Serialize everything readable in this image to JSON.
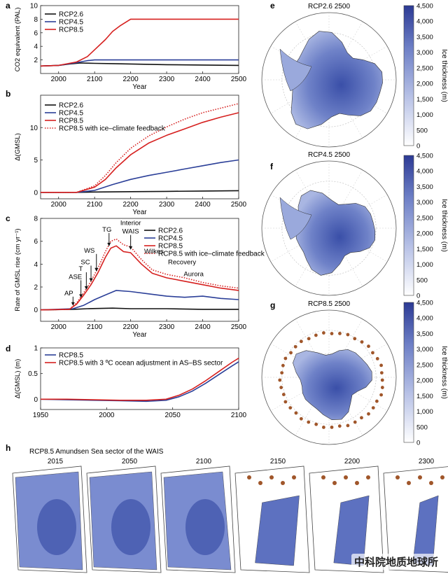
{
  "watermark": "中科院地质地球所",
  "colors": {
    "rcp26": "#111111",
    "rcp45": "#2b3f98",
    "rcp85": "#d6201f",
    "ice_light": "#ccd3ec",
    "ice_dark": "#3a4fa8",
    "retreat": "#a0562a"
  },
  "chart_data": [
    {
      "id": "a",
      "type": "line",
      "xlabel": "Year",
      "ylabel": "CO2 equivalent (PAL)",
      "xlim": [
        1950,
        2500
      ],
      "ylim": [
        0,
        10
      ],
      "xticks": [
        2000,
        2100,
        2200,
        2300,
        2400,
        2500
      ],
      "yticks": [
        2,
        4,
        6,
        8,
        10
      ],
      "legend_position": "top-left",
      "series": [
        {
          "name": "RCP2.6",
          "color": "#111111",
          "style": "solid",
          "x": [
            1950,
            2000,
            2030,
            2060,
            2100,
            2150,
            2200,
            2300,
            2400,
            2500
          ],
          "y": [
            1.1,
            1.2,
            1.4,
            1.55,
            1.5,
            1.45,
            1.4,
            1.3,
            1.25,
            1.2
          ]
        },
        {
          "name": "RCP4.5",
          "color": "#2b3f98",
          "style": "solid",
          "x": [
            1950,
            2000,
            2050,
            2080,
            2100,
            2150,
            2200,
            2500
          ],
          "y": [
            1.1,
            1.2,
            1.6,
            1.9,
            2.0,
            2.0,
            2.0,
            2.0
          ]
        },
        {
          "name": "RCP8.5",
          "color": "#d6201f",
          "style": "solid",
          "x": [
            1950,
            2000,
            2050,
            2080,
            2100,
            2130,
            2150,
            2170,
            2200,
            2300,
            2500
          ],
          "y": [
            1.1,
            1.2,
            1.7,
            2.5,
            3.5,
            5.0,
            6.2,
            7.0,
            8.0,
            8.0,
            8.0
          ]
        }
      ]
    },
    {
      "id": "b",
      "type": "line",
      "xlabel": "Year",
      "ylabel": "Δ(GMSL)",
      "xlim": [
        1950,
        2500
      ],
      "ylim": [
        -1,
        15
      ],
      "xticks": [
        2000,
        2100,
        2200,
        2300,
        2400,
        2500
      ],
      "yticks": [
        0,
        5,
        10
      ],
      "legend_position": "top-left",
      "series": [
        {
          "name": "RCP2.6",
          "color": "#111111",
          "style": "solid",
          "x": [
            1950,
            2050,
            2100,
            2200,
            2300,
            2400,
            2500
          ],
          "y": [
            0,
            0,
            0.05,
            0.1,
            0.15,
            0.2,
            0.25
          ]
        },
        {
          "name": "RCP4.5",
          "color": "#2b3f98",
          "style": "solid",
          "x": [
            1950,
            2050,
            2100,
            2150,
            2200,
            2250,
            2300,
            2350,
            2400,
            2450,
            2500
          ],
          "y": [
            0,
            0,
            0.3,
            1.2,
            2.0,
            2.6,
            3.1,
            3.6,
            4.1,
            4.6,
            5.0
          ]
        },
        {
          "name": "RCP8.5",
          "color": "#d6201f",
          "style": "solid",
          "x": [
            1950,
            2050,
            2100,
            2130,
            2160,
            2200,
            2250,
            2300,
            2350,
            2400,
            2450,
            2500
          ],
          "y": [
            0,
            0,
            0.8,
            2.0,
            3.8,
            5.8,
            7.6,
            8.8,
            9.8,
            10.8,
            11.6,
            12.3
          ]
        },
        {
          "name": "RCP8.5 with ice–climate feedback",
          "color": "#d6201f",
          "style": "dotted",
          "x": [
            1950,
            2050,
            2100,
            2130,
            2160,
            2200,
            2250,
            2300,
            2350,
            2400,
            2450,
            2500
          ],
          "y": [
            0,
            0,
            1.0,
            2.6,
            4.6,
            6.8,
            8.7,
            10.1,
            11.3,
            12.3,
            13.0,
            13.7
          ]
        }
      ]
    },
    {
      "id": "c",
      "type": "line",
      "xlabel": "Year",
      "ylabel": "Rate of GMSL rise (cm yr⁻¹)",
      "xlim": [
        1950,
        2500
      ],
      "ylim": [
        -1,
        8
      ],
      "xticks": [
        2000,
        2100,
        2200,
        2300,
        2400,
        2500
      ],
      "yticks": [
        0,
        2,
        4,
        6,
        8
      ],
      "legend_position": "top-right",
      "series": [
        {
          "name": "RCP2.6",
          "color": "#111111",
          "style": "solid",
          "x": [
            1950,
            2040,
            2080,
            2150,
            2200,
            2300,
            2400,
            2500
          ],
          "y": [
            0,
            0.05,
            0.1,
            0.15,
            0.1,
            0.1,
            0.05,
            0.05
          ]
        },
        {
          "name": "RCP4.5",
          "color": "#2b3f98",
          "style": "solid",
          "x": [
            1950,
            2040,
            2070,
            2100,
            2130,
            2160,
            2200,
            2250,
            2300,
            2350,
            2400,
            2450,
            2500
          ],
          "y": [
            0,
            0.1,
            0.4,
            0.9,
            1.3,
            1.7,
            1.6,
            1.4,
            1.2,
            1.1,
            1.2,
            1.0,
            0.9
          ]
        },
        {
          "name": "RCP8.5",
          "color": "#d6201f",
          "style": "solid",
          "x": [
            1950,
            2030,
            2050,
            2070,
            2090,
            2110,
            2130,
            2145,
            2160,
            2180,
            2200,
            2230,
            2260,
            2300,
            2350,
            2400,
            2450,
            2500
          ],
          "y": [
            0,
            0.05,
            0.5,
            1.3,
            2.2,
            3.3,
            4.6,
            5.4,
            5.6,
            5.1,
            5.0,
            4.0,
            3.2,
            2.8,
            2.5,
            2.2,
            1.9,
            1.7
          ]
        },
        {
          "name": "RCP8.5 with ice–climate feedback",
          "color": "#d6201f",
          "style": "dotted",
          "x": [
            1950,
            2030,
            2050,
            2070,
            2090,
            2110,
            2130,
            2145,
            2160,
            2180,
            2200,
            2230,
            2260,
            2300,
            2350,
            2400,
            2450,
            2500
          ],
          "y": [
            0,
            0.05,
            0.6,
            1.5,
            2.5,
            3.7,
            5.1,
            6.0,
            6.2,
            5.7,
            5.5,
            4.4,
            3.5,
            3.1,
            2.8,
            2.4,
            2.1,
            1.9
          ]
        }
      ],
      "annotations": [
        {
          "text": "AP",
          "x": 2040,
          "y": 0.3
        },
        {
          "text": "ASE",
          "x": 2062,
          "y": 1.0
        },
        {
          "text": "T",
          "x": 2077,
          "y": 1.7
        },
        {
          "text": "SC",
          "x": 2090,
          "y": 2.4
        },
        {
          "text": "WS",
          "x": 2105,
          "y": 3.3
        },
        {
          "text": "TG",
          "x": 2140,
          "y": 5.5
        },
        {
          "text": "Interior",
          "x": 2200,
          "y": 5.2
        },
        {
          "text": "WAIS",
          "x": 2200,
          "y": 5.2
        },
        {
          "text": "Wilkes",
          "x": 2222,
          "y": 4.2
        },
        {
          "text": "Recovery",
          "x": 2265,
          "y": 2.9
        },
        {
          "text": "Aurora",
          "x": 2375,
          "y": 2.1
        }
      ]
    },
    {
      "id": "d",
      "type": "line",
      "xlabel": "",
      "ylabel": "Δ(GMSL) (m)",
      "xlim": [
        1950,
        2100
      ],
      "ylim": [
        -0.2,
        1.0
      ],
      "xticks": [
        1950,
        2000,
        2050,
        2100
      ],
      "yticks": [
        0,
        0.5,
        1.0
      ],
      "legend_position": "top-left",
      "series": [
        {
          "name": "RCP8.5",
          "color": "#2b3f98",
          "style": "solid",
          "x": [
            1950,
            1970,
            1990,
            2010,
            2030,
            2045,
            2055,
            2065,
            2075,
            2085,
            2095,
            2100
          ],
          "y": [
            0,
            -0.01,
            -0.02,
            -0.03,
            -0.04,
            -0.02,
            0.05,
            0.16,
            0.31,
            0.48,
            0.65,
            0.73
          ]
        },
        {
          "name": "RCP8.5 with 3 ºC ocean adjustment in AS–BS sector",
          "color": "#d6201f",
          "style": "solid",
          "x": [
            1950,
            1970,
            1990,
            2010,
            2030,
            2045,
            2055,
            2065,
            2075,
            2085,
            2095,
            2100
          ],
          "y": [
            0,
            0,
            -0.01,
            -0.02,
            -0.02,
            0.0,
            0.08,
            0.2,
            0.36,
            0.54,
            0.72,
            0.8
          ]
        }
      ]
    },
    {
      "id": "e",
      "type": "heatmap",
      "title": "RCP2.6 2500",
      "colorbar_label": "Ice thickness (m)",
      "colorbar_ticks": [
        0,
        500,
        1000,
        1500,
        2000,
        2500,
        3000,
        3500,
        4000,
        4500
      ]
    },
    {
      "id": "f",
      "type": "heatmap",
      "title": "RCP4.5 2500",
      "colorbar_label": "Ice thickness (m)",
      "colorbar_ticks": [
        0,
        500,
        1000,
        1500,
        2000,
        2500,
        3000,
        3500,
        4000,
        4500
      ]
    },
    {
      "id": "g",
      "type": "heatmap",
      "title": "RCP8.5 2500",
      "colorbar_label": "Ice thickness (m)",
      "colorbar_ticks": [
        0,
        500,
        1000,
        1500,
        2000,
        2500,
        3000,
        3500,
        4000,
        4500
      ]
    },
    {
      "id": "h",
      "type": "heatmap",
      "title": "RCP8.5 Amundsen Sea sector of the WAIS",
      "panels": [
        "2015",
        "2050",
        "2100",
        "2150",
        "2200",
        "2300"
      ]
    }
  ]
}
